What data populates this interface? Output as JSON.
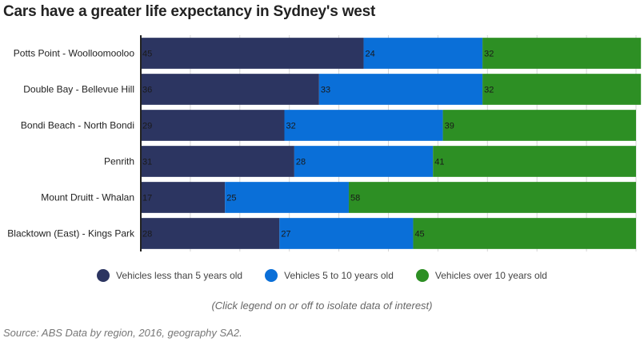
{
  "title": "Cars have a greater life expectancy in Sydney's west",
  "hint": "(Click legend on or off to isolate data of interest)",
  "source": "Source: ABS Data by region, 2016, geography SA2.",
  "chart_data": {
    "type": "bar",
    "orientation": "horizontal",
    "stacked": true,
    "categories": [
      "Potts Point - Woolloomooloo",
      "Double Bay - Bellevue Hill",
      "Bondi Beach - North Bondi",
      "Penrith",
      "Mount Druitt - Whalan",
      "Blacktown (East) - Kings Park"
    ],
    "series": [
      {
        "name": "Vehicles less than 5 years old",
        "color": "#2c3561",
        "values": [
          45,
          36,
          29,
          31,
          17,
          28
        ]
      },
      {
        "name": "Vehicles 5 to 10 years old",
        "color": "#0a6fd8",
        "values": [
          24,
          33,
          32,
          28,
          25,
          27
        ]
      },
      {
        "name": "Vehicles over 10 years old",
        "color": "#2d8f24",
        "values": [
          32,
          32,
          39,
          41,
          58,
          45
        ]
      }
    ],
    "xlim": [
      0,
      100
    ],
    "grid": true,
    "legend_position": "bottom"
  }
}
